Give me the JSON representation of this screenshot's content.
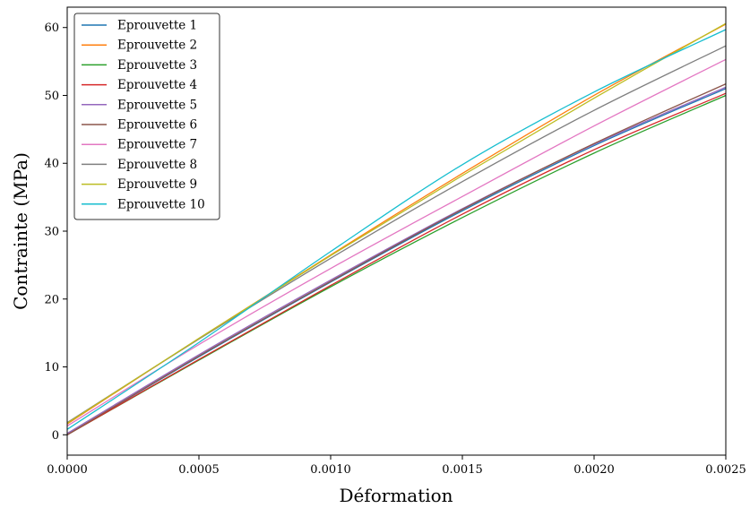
{
  "chart_data": {
    "type": "line",
    "title": "",
    "xlabel": "Déformation",
    "ylabel": "Contrainte (MPa)",
    "xlim": [
      0.0,
      0.0025
    ],
    "ylim": [
      -3,
      63
    ],
    "xticks": [
      0.0,
      0.0005,
      0.001,
      0.0015,
      0.002,
      0.0025
    ],
    "xtick_labels": [
      "0.0000",
      "0.0005",
      "0.0010",
      "0.0015",
      "0.0020",
      "0.0025"
    ],
    "yticks": [
      0,
      10,
      20,
      30,
      40,
      50,
      60
    ],
    "ytick_labels": [
      "0",
      "10",
      "20",
      "30",
      "40",
      "50",
      "60"
    ],
    "grid": false,
    "legend_position": "top-left",
    "x": [
      0.0,
      0.0005,
      0.001,
      0.0015,
      0.002,
      0.0025
    ],
    "series": [
      {
        "name": "Eprouvette 1",
        "color": "#1f77b4",
        "values": [
          0.0,
          11.5,
          22.5,
          33.0,
          42.6,
          51.0
        ]
      },
      {
        "name": "Eprouvette 2",
        "color": "#ff7f0e",
        "values": [
          1.6,
          14.2,
          26.5,
          38.5,
          50.0,
          60.5
        ]
      },
      {
        "name": "Eprouvette 3",
        "color": "#2ca02c",
        "values": [
          0.0,
          11.0,
          21.8,
          32.0,
          41.5,
          50.0
        ]
      },
      {
        "name": "Eprouvette 4",
        "color": "#d62728",
        "values": [
          0.0,
          11.1,
          22.0,
          32.5,
          42.0,
          50.3
        ]
      },
      {
        "name": "Eprouvette 5",
        "color": "#9467bd",
        "values": [
          0.2,
          11.8,
          22.8,
          33.3,
          42.8,
          51.2
        ]
      },
      {
        "name": "Eprouvette 6",
        "color": "#8c564b",
        "values": [
          0.0,
          11.6,
          22.6,
          33.2,
          42.9,
          51.7
        ]
      },
      {
        "name": "Eprouvette 7",
        "color": "#e377c2",
        "values": [
          1.3,
          13.3,
          24.5,
          35.1,
          45.5,
          55.3
        ]
      },
      {
        "name": "Eprouvette 8",
        "color": "#7f7f7f",
        "values": [
          1.8,
          14.1,
          26.0,
          37.3,
          47.8,
          57.3
        ]
      },
      {
        "name": "Eprouvette 9",
        "color": "#bcbd22",
        "values": [
          1.7,
          14.2,
          26.4,
          38.2,
          49.6,
          60.6
        ]
      },
      {
        "name": "Eprouvette 10",
        "color": "#17becf",
        "values": [
          0.8,
          13.6,
          27.0,
          39.8,
          50.5,
          59.7
        ]
      }
    ]
  }
}
